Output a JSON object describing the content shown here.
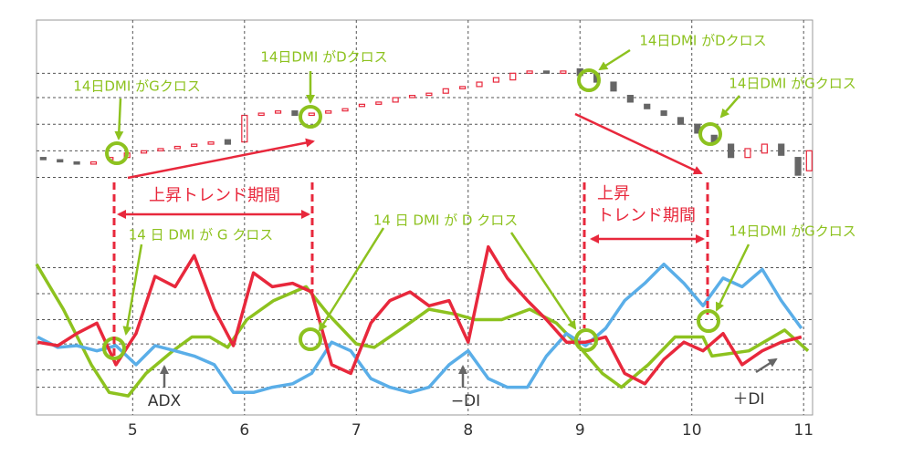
{
  "chart_data": [
    {
      "type": "candlestick",
      "x": [
        4.2,
        4.35,
        4.5,
        4.65,
        4.8,
        4.95,
        5.1,
        5.25,
        5.4,
        5.55,
        5.7,
        5.85,
        6.0,
        6.15,
        6.3,
        6.45,
        6.6,
        6.75,
        6.9,
        7.05,
        7.2,
        7.35,
        7.5,
        7.65,
        7.8,
        7.95,
        8.1,
        8.25,
        8.4,
        8.55,
        8.7,
        8.85,
        9.0,
        9.15,
        9.3,
        9.45,
        9.6,
        9.75,
        9.9,
        10.05,
        10.2,
        10.35,
        10.5,
        10.65,
        10.8,
        10.95,
        11.05
      ],
      "open": [
        38,
        37,
        36,
        35,
        37,
        38,
        40,
        41,
        42,
        43,
        44,
        46,
        45,
        57,
        58,
        59,
        57,
        58,
        59,
        61,
        62,
        63,
        65,
        66,
        67,
        69,
        70,
        72,
        73,
        76,
        77,
        76,
        78,
        76,
        72,
        66,
        62,
        59,
        56,
        53,
        48,
        44,
        38,
        40,
        44,
        38,
        32
      ],
      "close": [
        37,
        36,
        35,
        36,
        38,
        40,
        41,
        42,
        43,
        44,
        45,
        44,
        57,
        58,
        59,
        57,
        58,
        59,
        60,
        62,
        63,
        65,
        66,
        67,
        69,
        70,
        72,
        74,
        76,
        77,
        76,
        77,
        75,
        72,
        68,
        63,
        60,
        57,
        53,
        49,
        45,
        38,
        42,
        44,
        39,
        30,
        41
      ],
      "up_color": "#e8283c",
      "down_color": "#666666",
      "xlim": [
        4.14,
        11.08
      ],
      "ylim": [
        0,
        100
      ],
      "yticks": [
        76,
        65,
        53,
        41,
        29
      ],
      "grid": true,
      "annotations": [
        "14日DMI がGクロス",
        "14日DMI がDクロス",
        "14日DMI がDクロス",
        "14日DMI がGクロス",
        "上昇トレンド期間",
        "上昇",
        "トレンド期間"
      ]
    },
    {
      "type": "line",
      "xlim": [
        4.14,
        11.08
      ],
      "ylim": [
        0,
        100
      ],
      "xticks": [
        5,
        6,
        7,
        8,
        9,
        10,
        11
      ],
      "yticks": [
        85,
        70,
        55,
        41,
        26,
        16
      ],
      "grid": true,
      "series": [
        {
          "name": "ADX",
          "color": "#8dc21f",
          "x": [
            4.14,
            4.38,
            4.63,
            4.79,
            4.96,
            5.12,
            5.36,
            5.53,
            5.69,
            5.85,
            6.02,
            6.26,
            6.55,
            6.75,
            7.0,
            7.16,
            7.41,
            7.65,
            7.9,
            8.06,
            8.3,
            8.55,
            8.79,
            9.0,
            9.2,
            9.37,
            9.61,
            9.85,
            10.1,
            10.18,
            10.51,
            10.83,
            11.04
          ],
          "values": [
            87,
            61,
            29,
            13,
            11,
            24,
            37,
            45,
            45,
            39,
            55,
            66,
            74,
            58,
            41,
            39,
            50,
            61,
            58,
            55,
            55,
            61,
            53,
            39,
            24,
            16,
            29,
            45,
            45,
            34,
            37,
            49,
            37
          ]
        },
        {
          "name": "−DI",
          "color": "#5aaee8",
          "x": [
            4.15,
            4.33,
            4.5,
            4.68,
            4.85,
            5.03,
            5.2,
            5.38,
            5.55,
            5.73,
            5.9,
            6.08,
            6.25,
            6.43,
            6.6,
            6.78,
            6.95,
            7.13,
            7.3,
            7.48,
            7.65,
            7.83,
            8.0,
            8.18,
            8.35,
            8.53,
            8.7,
            8.88,
            9.05,
            9.23,
            9.4,
            9.58,
            9.75,
            9.93,
            10.1,
            10.28,
            10.45,
            10.63,
            10.8,
            10.98
          ],
          "values": [
            45,
            39,
            40,
            37,
            40,
            29,
            40,
            37,
            34,
            29,
            13,
            13,
            16,
            18,
            24,
            42,
            37,
            21,
            16,
            13,
            16,
            29,
            37,
            21,
            16,
            16,
            34,
            47,
            40,
            50,
            66,
            76,
            87,
            76,
            63,
            79,
            74,
            84,
            66,
            50
          ]
        },
        {
          "name": "＋DI",
          "color": "#e8283c",
          "x": [
            4.15,
            4.33,
            4.5,
            4.68,
            4.85,
            5.03,
            5.2,
            5.38,
            5.55,
            5.73,
            5.9,
            6.08,
            6.25,
            6.43,
            6.6,
            6.78,
            6.95,
            7.13,
            7.3,
            7.48,
            7.65,
            7.83,
            8.0,
            8.18,
            8.35,
            8.53,
            8.7,
            8.88,
            9.05,
            9.23,
            9.4,
            9.58,
            9.75,
            9.93,
            10.1,
            10.28,
            10.45,
            10.63,
            10.8,
            10.98
          ],
          "values": [
            42,
            40,
            47,
            53,
            29,
            47,
            80,
            74,
            92,
            61,
            40,
            82,
            74,
            76,
            71,
            29,
            24,
            53,
            66,
            71,
            63,
            66,
            42,
            97,
            79,
            66,
            55,
            42,
            42,
            45,
            24,
            18,
            32,
            42,
            37,
            47,
            29,
            37,
            42,
            45
          ]
        }
      ],
      "annotations": [
        "14 日 DMI が G クロス",
        "14 日 DMI が D クロス",
        "14日DMI がGクロス"
      ]
    }
  ]
}
